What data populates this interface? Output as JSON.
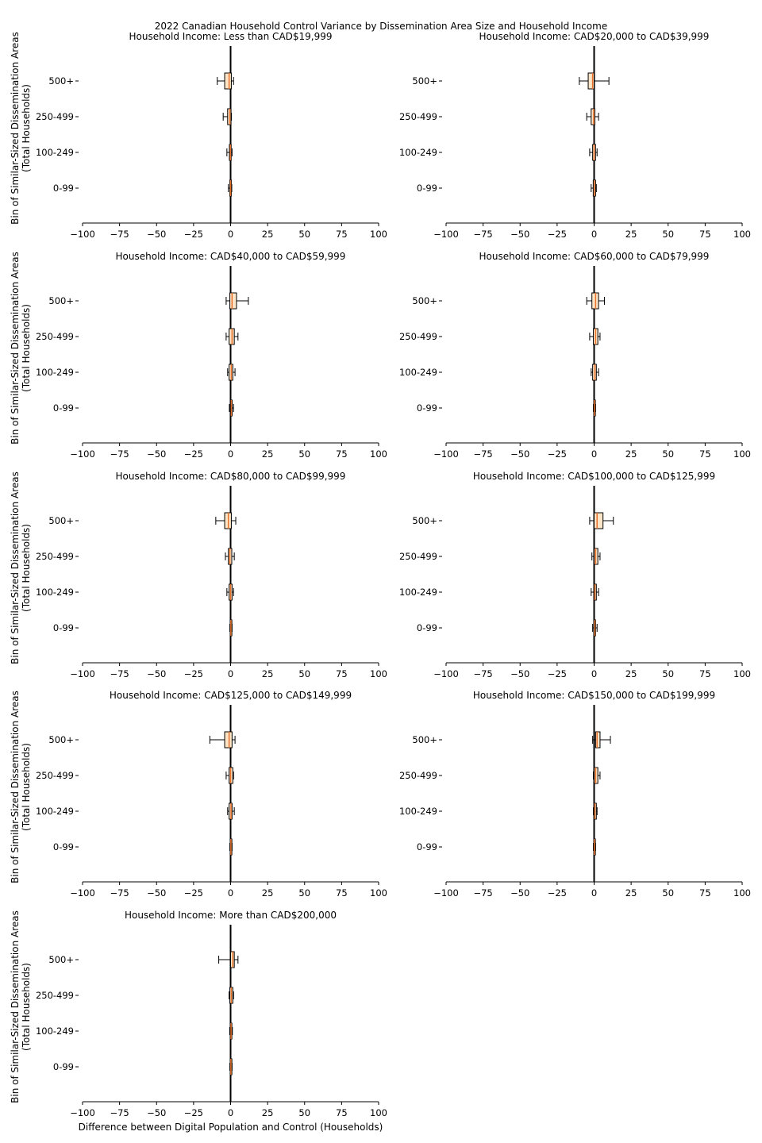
{
  "figure": {
    "title": "2022 Canadian Household Control Variance by Dissemination Area Size and Household Income",
    "ylabel_line1": "Bin of Similar-Sized Dissemination Areas",
    "ylabel_line2": "(Total Households)",
    "xlabel": "Difference between Digital Population and Control (Households)"
  },
  "colors": {
    "box_fill": "#fde6c8",
    "median": "#e8702a",
    "zero_line": "#000000",
    "axis": "#000000"
  },
  "chart_data": [
    {
      "type": "boxplot",
      "orientation": "horizontal",
      "title": "Household Income: Less than CAD$19,999",
      "categories": [
        "0-99",
        "100-249",
        "250-499",
        "500+"
      ],
      "xlim": [
        -100,
        100
      ],
      "xticks": [
        -100,
        -75,
        -50,
        -25,
        0,
        25,
        50,
        75,
        100
      ],
      "boxes": [
        {
          "whislo": -1.5,
          "q1": -0.5,
          "med": 0,
          "q3": 0.4,
          "whishi": 0.8
        },
        {
          "whislo": -2.5,
          "q1": -0.8,
          "med": -0.1,
          "q3": 0.4,
          "whishi": 1
        },
        {
          "whislo": -5,
          "q1": -2,
          "med": -0.5,
          "q3": 0.3,
          "whishi": 0.6
        },
        {
          "whislo": -9,
          "q1": -4,
          "med": -1,
          "q3": 0.5,
          "whishi": 2
        }
      ]
    },
    {
      "type": "boxplot",
      "orientation": "horizontal",
      "title": "Household Income: CAD$20,000 to CAD$39,999",
      "categories": [
        "0-99",
        "100-249",
        "250-499",
        "500+"
      ],
      "xlim": [
        -100,
        100
      ],
      "xticks": [
        -100,
        -75,
        -50,
        -25,
        0,
        25,
        50,
        75,
        100
      ],
      "boxes": [
        {
          "whislo": -2,
          "q1": -0.6,
          "med": 0.2,
          "q3": 1,
          "whishi": 1.5
        },
        {
          "whislo": -3,
          "q1": -1,
          "med": 0,
          "q3": 1,
          "whishi": 2
        },
        {
          "whislo": -5,
          "q1": -2,
          "med": -0.3,
          "q3": 0.5,
          "whishi": 3
        },
        {
          "whislo": -10,
          "q1": -4,
          "med": -1,
          "q3": 0,
          "whishi": 10
        }
      ]
    },
    {
      "type": "boxplot",
      "orientation": "horizontal",
      "title": "Household Income: CAD$40,000 to CAD$59,999",
      "categories": [
        "0-99",
        "100-249",
        "250-499",
        "500+"
      ],
      "xlim": [
        -100,
        100
      ],
      "xticks": [
        -100,
        -75,
        -50,
        -25,
        0,
        25,
        50,
        75,
        100
      ],
      "boxes": [
        {
          "whislo": -0.8,
          "q1": 0,
          "med": 0.5,
          "q3": 1,
          "whishi": 2
        },
        {
          "whislo": -2,
          "q1": -1,
          "med": 0.5,
          "q3": 1.5,
          "whishi": 3
        },
        {
          "whislo": -3,
          "q1": -1,
          "med": 1,
          "q3": 2.5,
          "whishi": 5
        },
        {
          "whislo": -3,
          "q1": -0.5,
          "med": 1,
          "q3": 4,
          "whishi": 12
        }
      ]
    },
    {
      "type": "boxplot",
      "orientation": "horizontal",
      "title": "Household Income: CAD$60,000 to CAD$79,999",
      "categories": [
        "0-99",
        "100-249",
        "250-499",
        "500+"
      ],
      "xlim": [
        -100,
        100
      ],
      "xticks": [
        -100,
        -75,
        -50,
        -25,
        0,
        25,
        50,
        75,
        100
      ],
      "boxes": [
        {
          "whislo": -0.5,
          "q1": -0.2,
          "med": 0.3,
          "q3": 0.7,
          "whishi": 1
        },
        {
          "whislo": -2,
          "q1": -1,
          "med": 0.5,
          "q3": 1.5,
          "whishi": 3
        },
        {
          "whislo": -3,
          "q1": -0.5,
          "med": 1,
          "q3": 2.5,
          "whishi": 4
        },
        {
          "whislo": -5,
          "q1": -1.5,
          "med": 1,
          "q3": 3,
          "whishi": 7
        }
      ]
    },
    {
      "type": "boxplot",
      "orientation": "horizontal",
      "title": "Household Income: CAD$80,000 to CAD$99,999",
      "categories": [
        "0-99",
        "100-249",
        "250-499",
        "500+"
      ],
      "xlim": [
        -100,
        100
      ],
      "xticks": [
        -100,
        -75,
        -50,
        -25,
        0,
        25,
        50,
        75,
        100
      ],
      "boxes": [
        {
          "whislo": -0.5,
          "q1": -0.2,
          "med": 0.2,
          "q3": 0.6,
          "whishi": 1
        },
        {
          "whislo": -2.5,
          "q1": -1,
          "med": 0,
          "q3": 1,
          "whishi": 2
        },
        {
          "whislo": -3.5,
          "q1": -1.5,
          "med": -0.5,
          "q3": 0.8,
          "whishi": 2.5
        },
        {
          "whislo": -10,
          "q1": -4,
          "med": -1.5,
          "q3": 0.5,
          "whishi": 3.5
        }
      ]
    },
    {
      "type": "boxplot",
      "orientation": "horizontal",
      "title": "Household Income: CAD$100,000 to CAD$125,999",
      "categories": [
        "0-99",
        "100-249",
        "250-499",
        "500+"
      ],
      "xlim": [
        -100,
        100
      ],
      "xticks": [
        -100,
        -75,
        -50,
        -25,
        0,
        25,
        50,
        75,
        100
      ],
      "boxes": [
        {
          "whislo": -1,
          "q1": -0.2,
          "med": 0.5,
          "q3": 1,
          "whishi": 2
        },
        {
          "whislo": -2,
          "q1": 0,
          "med": 0.5,
          "q3": 1.5,
          "whishi": 3
        },
        {
          "whislo": -1.5,
          "q1": 0,
          "med": 1,
          "q3": 2.5,
          "whishi": 4
        },
        {
          "whislo": -3,
          "q1": 0,
          "med": 2,
          "q3": 6,
          "whishi": 13
        }
      ]
    },
    {
      "type": "boxplot",
      "orientation": "horizontal",
      "title": "Household Income: CAD$125,000 to CAD$149,999",
      "categories": [
        "0-99",
        "100-249",
        "250-499",
        "500+"
      ],
      "xlim": [
        -100,
        100
      ],
      "xticks": [
        -100,
        -75,
        -50,
        -25,
        0,
        25,
        50,
        75,
        100
      ],
      "boxes": [
        {
          "whislo": -0.5,
          "q1": -0.2,
          "med": 0.2,
          "q3": 0.6,
          "whishi": 1
        },
        {
          "whislo": -2,
          "q1": -1,
          "med": 0.3,
          "q3": 1,
          "whishi": 2.5
        },
        {
          "whislo": -3,
          "q1": -1,
          "med": 0,
          "q3": 1.5,
          "whishi": 2
        },
        {
          "whislo": -14,
          "q1": -4,
          "med": -1,
          "q3": 1,
          "whishi": 3
        }
      ]
    },
    {
      "type": "boxplot",
      "orientation": "horizontal",
      "title": "Household Income: CAD$150,000 to CAD$199,999",
      "categories": [
        "0-99",
        "100-249",
        "250-499",
        "500+"
      ],
      "xlim": [
        -100,
        100
      ],
      "xticks": [
        -100,
        -75,
        -50,
        -25,
        0,
        25,
        50,
        75,
        100
      ],
      "boxes": [
        {
          "whislo": -0.5,
          "q1": -0.2,
          "med": 0.2,
          "q3": 0.6,
          "whishi": 1
        },
        {
          "whislo": -0.5,
          "q1": 0,
          "med": 0.5,
          "q3": 1.5,
          "whishi": 2
        },
        {
          "whislo": -0.5,
          "q1": 0,
          "med": 1,
          "q3": 2.5,
          "whishi": 4
        },
        {
          "whislo": -1,
          "q1": 1,
          "med": 2,
          "q3": 4,
          "whishi": 11
        }
      ]
    },
    {
      "type": "boxplot",
      "orientation": "horizontal",
      "title": "Household Income: More than CAD$200,000",
      "categories": [
        "0-99",
        "100-249",
        "250-499",
        "500+"
      ],
      "xlim": [
        -100,
        100
      ],
      "xticks": [
        -100,
        -75,
        -50,
        -25,
        0,
        25,
        50,
        75,
        100
      ],
      "boxes": [
        {
          "whislo": -0.5,
          "q1": -0.2,
          "med": 0.2,
          "q3": 0.6,
          "whishi": 1
        },
        {
          "whislo": -0.6,
          "q1": -0.2,
          "med": 0.3,
          "q3": 0.8,
          "whishi": 1.2
        },
        {
          "whislo": -1,
          "q1": -0.5,
          "med": 0.5,
          "q3": 1.5,
          "whishi": 2
        },
        {
          "whislo": -8,
          "q1": 0,
          "med": 1.5,
          "q3": 2.5,
          "whishi": 5
        }
      ]
    }
  ]
}
